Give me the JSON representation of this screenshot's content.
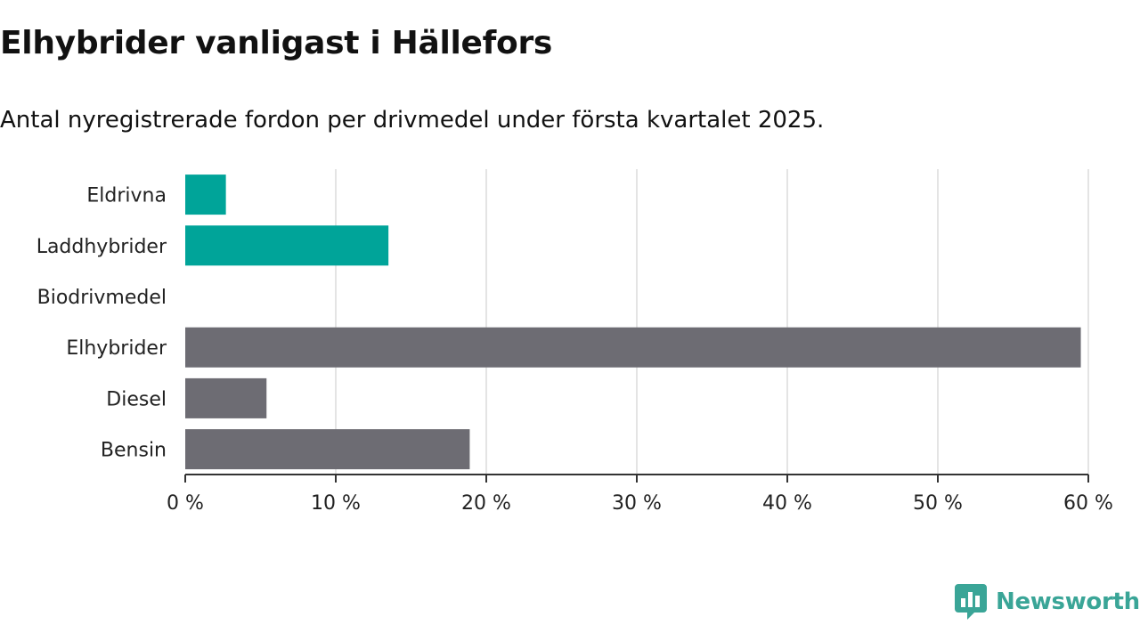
{
  "title": "Elhybrider vanligast i Hällefors",
  "subtitle": "Antal nyregistrerade fordon per drivmedel under första kvartalet 2025.",
  "brand": {
    "name": "Newsworthy",
    "color": "#3aa597",
    "icon": "newsworthy-logo-icon"
  },
  "colors": {
    "highlight": "#00a499",
    "default": "#6d6c73",
    "grid": "#dcdcdc",
    "axis": "#333333"
  },
  "chart_data": {
    "type": "bar",
    "orientation": "horizontal",
    "categories": [
      "Eldrivna",
      "Laddhybrider",
      "Biodrivmedel",
      "Elhybrider",
      "Diesel",
      "Bensin"
    ],
    "values": [
      2.7,
      13.5,
      0,
      59.5,
      5.4,
      18.9
    ],
    "bar_colors": [
      "#00a499",
      "#00a499",
      "#6d6c73",
      "#6d6c73",
      "#6d6c73",
      "#6d6c73"
    ],
    "xlim": [
      0,
      60
    ],
    "xticks": [
      0,
      10,
      20,
      30,
      40,
      50,
      60
    ],
    "xtick_labels": [
      "0 %",
      "10 %",
      "20 %",
      "30 %",
      "40 %",
      "50 %",
      "60 %"
    ],
    "unit": "%",
    "grid": "vertical",
    "legend": "none"
  }
}
